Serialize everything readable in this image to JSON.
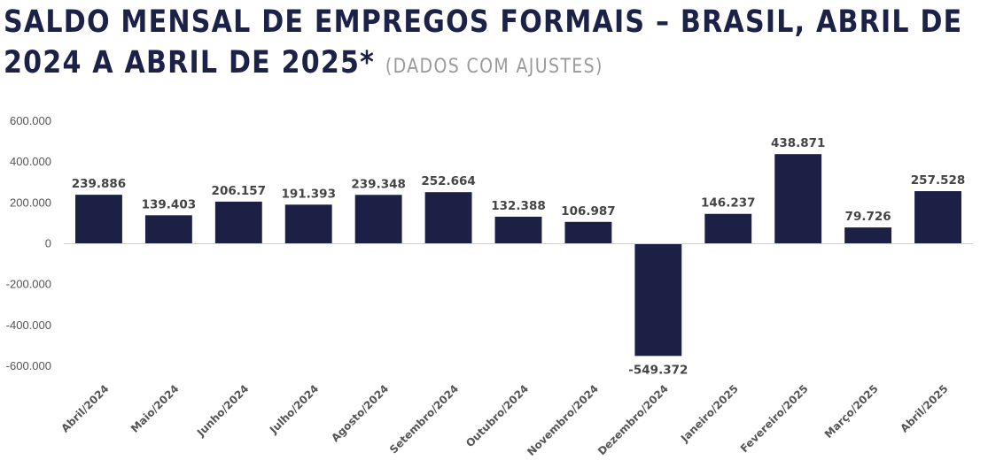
{
  "header": {
    "title_main": "SALDO MENSAL DE EMPREGOS FORMAIS – BRASIL, ABRIL DE 2024 A ABRIL DE 2025*",
    "title_sub": "(DADOS COM AJUSTES)"
  },
  "colors": {
    "bar": "#1c2045",
    "axis": "#d0d0d0",
    "title": "#1c2147"
  },
  "chart_data": {
    "type": "bar",
    "title": "SALDO MENSAL DE EMPREGOS FORMAIS – BRASIL, ABRIL DE 2024 A ABRIL DE 2025*",
    "subtitle": "(DADOS COM AJUSTES)",
    "categories": [
      "Abril/2024",
      "Maio/2024",
      "Junho/2024",
      "Julho/2024",
      "Agosto/2024",
      "Setembro/2024",
      "Outubro/2024",
      "Novembro/2024",
      "Dezembro/2024",
      "Janeiro/2025",
      "Fevereiro/2025",
      "Março/2025",
      "Abril/2025"
    ],
    "values": [
      239886,
      139403,
      206157,
      191393,
      239348,
      252664,
      132388,
      106987,
      -549372,
      146237,
      438871,
      79726,
      257528
    ],
    "value_labels": [
      "239.886",
      "139.403",
      "206.157",
      "191.393",
      "239.348",
      "252.664",
      "132.388",
      "106.987",
      "-549.372",
      "146.237",
      "438.871",
      "79.726",
      "257.528"
    ],
    "yticks": [
      600000,
      400000,
      200000,
      0,
      -200000,
      -400000,
      -600000
    ],
    "ytick_labels": [
      "600.000",
      "400.000",
      "200.000",
      "0",
      "-200.000",
      "-400.000",
      "-600.000"
    ],
    "ylim": [
      -600000,
      600000
    ],
    "xlabel": "",
    "ylabel": "",
    "grid": false,
    "legend": "none"
  }
}
